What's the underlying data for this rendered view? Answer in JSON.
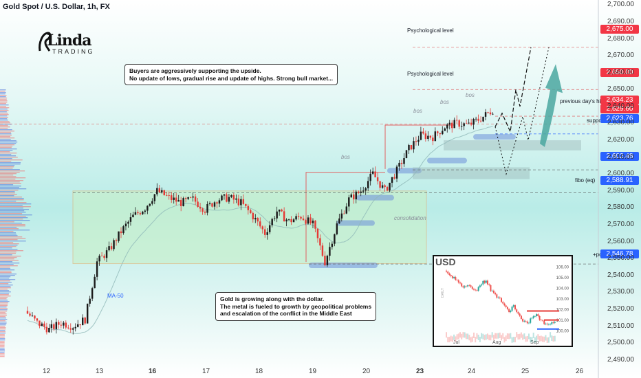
{
  "title": "Gold Spot / U.S. Dollar, 1h, FX",
  "logo": {
    "main": "Linda",
    "sub": "TRADING"
  },
  "callouts": {
    "top": [
      "Buyers are aggressively supporting the upside.",
      "No update of lows, gradual rise and update of highs. Strong bull market..."
    ],
    "bottom": [
      "Gold is growing along with the dollar.",
      "The metal is fueled to growth by geopolitical problems",
      "and escalation of the conflict in the Middle East"
    ]
  },
  "annotations": {
    "psych1": "Psychological level",
    "psych2": "Psychological level",
    "prev_high": "previous day's high",
    "support": "support",
    "fibo": "fibo (eq)",
    "poi": "+poi",
    "ma": "MA-50",
    "consolidation": "consolidation",
    "bos1": "bos",
    "bos2": "bos",
    "bos3": "bos",
    "bos4": "bos"
  },
  "colors": {
    "up": "#26a69a",
    "down": "#ef5350",
    "candle_up": "#1b1b1b",
    "candle_down": "#e53935",
    "red_tag": "#f23645",
    "blue_tag": "#2962ff",
    "zone_blue": "#6d8fd8",
    "zone_green": "#c8f0c8",
    "arrow": "#4aa7a0"
  },
  "chart_data": {
    "type": "candlestick",
    "title": "Gold Spot / U.S. Dollar, 1h, FX",
    "x_ticks": [
      "12",
      "13",
      "16",
      "17",
      "18",
      "19",
      "20",
      "23",
      "24",
      "25",
      "26"
    ],
    "y_ticks": [
      2490,
      2500,
      2510,
      2520,
      2530,
      2540,
      2550,
      2560,
      2570,
      2580,
      2590,
      2600,
      2610,
      2620,
      2630,
      2640,
      2650,
      2660,
      2670,
      2680,
      2690,
      2700
    ],
    "ylim": [
      2485,
      2703
    ],
    "price_levels": [
      {
        "value": "2,675.00",
        "color": "red"
      },
      {
        "value": "2,650.00",
        "color": "red"
      },
      {
        "value": "2,634.23",
        "color": "red"
      },
      {
        "value": "2,629.60",
        "color": "red"
      },
      {
        "value": "2,623.76",
        "color": "blue"
      },
      {
        "value": "2,602.48",
        "color": "blue"
      },
      {
        "value": "2,588.91",
        "color": "blue"
      },
      {
        "value": "2,546.78",
        "color": "blue"
      }
    ],
    "price_path": [
      [
        0,
        2519
      ],
      [
        1,
        2512
      ],
      [
        2,
        2508
      ],
      [
        3,
        2512
      ],
      [
        4,
        2510
      ],
      [
        5,
        2514
      ],
      [
        6,
        2548
      ],
      [
        7,
        2555
      ],
      [
        8,
        2566
      ],
      [
        9,
        2575
      ],
      [
        10,
        2580
      ],
      [
        11,
        2590
      ],
      [
        12,
        2586
      ],
      [
        13,
        2583
      ],
      [
        14,
        2585
      ],
      [
        15,
        2579
      ],
      [
        16,
        2585
      ],
      [
        17,
        2586
      ],
      [
        18,
        2583
      ],
      [
        19,
        2575
      ],
      [
        20,
        2565
      ],
      [
        21,
        2578
      ],
      [
        22,
        2572
      ],
      [
        23,
        2575
      ],
      [
        24,
        2570
      ],
      [
        25,
        2548
      ],
      [
        26,
        2570
      ],
      [
        27,
        2585
      ],
      [
        28,
        2590
      ],
      [
        29,
        2600
      ],
      [
        30,
        2590
      ],
      [
        31,
        2602
      ],
      [
        32,
        2615
      ],
      [
        33,
        2623
      ],
      [
        34,
        2622
      ],
      [
        35,
        2628
      ],
      [
        36,
        2630
      ],
      [
        37,
        2629
      ],
      [
        38,
        2633
      ],
      [
        39,
        2638
      ]
    ],
    "inset": {
      "title": "USD",
      "type": "candlestick",
      "x_ticks": [
        "Jul",
        "Aug",
        "Sep"
      ],
      "y_ticks": [
        "106.00",
        "105.00",
        "104.00",
        "103.00",
        "102.00",
        "101.00",
        "100.00"
      ],
      "ylim": [
        99.5,
        106.3
      ],
      "ylabel": "DAILY",
      "path": [
        [
          0,
          105.6
        ],
        [
          1,
          105.3
        ],
        [
          2,
          104.9
        ],
        [
          3,
          104.4
        ],
        [
          4,
          104.1
        ],
        [
          5,
          104.2
        ],
        [
          6,
          104.0
        ],
        [
          7,
          103.8
        ],
        [
          8,
          104.4
        ],
        [
          9,
          104.7
        ],
        [
          10,
          103.8
        ],
        [
          11,
          103.3
        ],
        [
          12,
          103.0
        ],
        [
          13,
          102.2
        ],
        [
          14,
          101.8
        ],
        [
          15,
          102.3
        ],
        [
          16,
          101.5
        ],
        [
          17,
          100.8
        ],
        [
          18,
          100.6
        ],
        [
          19,
          101.2
        ],
        [
          20,
          101.4
        ],
        [
          21,
          100.9
        ],
        [
          22,
          100.5
        ],
        [
          23,
          100.7
        ],
        [
          24,
          100.8
        ]
      ]
    }
  }
}
